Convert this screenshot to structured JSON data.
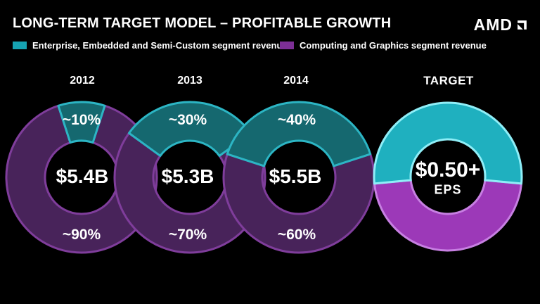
{
  "slide": {
    "title": "LONG-TERM TARGET MODEL – PROFITABLE GROWTH",
    "logo_text": "AMD",
    "background": "#000000"
  },
  "legend": {
    "items": [
      {
        "label": "Enterprise, Embedded and Semi-Custom segment revenue",
        "color": "#16a3b2"
      },
      {
        "label": "Computing and Graphics segment revenue",
        "color": "#7d2f96"
      }
    ]
  },
  "colors": {
    "text": "#ffffff",
    "teal_dim_fill": "#15686f",
    "teal_dim_stroke": "#2cb5c4",
    "purple_dim_fill": "#48235a",
    "purple_dim_stroke": "#7f3d9b",
    "teal_bright_fill": "#1fb0bf",
    "teal_bright_stroke": "#8feef7",
    "purple_bright_fill": "#9c39b8",
    "purple_bright_stroke": "#c77fe2"
  },
  "chart_data": [
    {
      "type": "pie",
      "title": "2012",
      "center_label": "$5.4B",
      "style": "dim",
      "legend_position": "top",
      "segments": [
        {
          "name": "Enterprise, Embedded and Semi-Custom segment revenue",
          "palette": "teal",
          "label": "~10%",
          "value": 10
        },
        {
          "name": "Computing and Graphics segment revenue",
          "palette": "purple",
          "label": "~90%",
          "value": 90
        }
      ]
    },
    {
      "type": "pie",
      "title": "2013",
      "center_label": "$5.3B",
      "style": "dim",
      "segments": [
        {
          "name": "Enterprise, Embedded and Semi-Custom segment revenue",
          "palette": "teal",
          "label": "~30%",
          "value": 30
        },
        {
          "name": "Computing and Graphics segment revenue",
          "palette": "purple",
          "label": "~70%",
          "value": 70
        }
      ]
    },
    {
      "type": "pie",
      "title": "2014",
      "center_label": "$5.5B",
      "style": "dim",
      "segments": [
        {
          "name": "Enterprise, Embedded and Semi-Custom segment revenue",
          "palette": "teal",
          "label": "~40%",
          "value": 40
        },
        {
          "name": "Computing and Graphics segment revenue",
          "palette": "purple",
          "label": "~60%",
          "value": 60
        }
      ]
    },
    {
      "type": "pie",
      "title": "TARGET",
      "center_label": "$0.50+",
      "center_sublabel": "EPS",
      "style": "bright",
      "segments": [
        {
          "name": "Enterprise, Embedded and Semi-Custom segment revenue",
          "palette": "teal",
          "label": "",
          "value": 53
        },
        {
          "name": "Computing and Graphics segment revenue",
          "palette": "purple",
          "label": "",
          "value": 47
        }
      ]
    }
  ]
}
